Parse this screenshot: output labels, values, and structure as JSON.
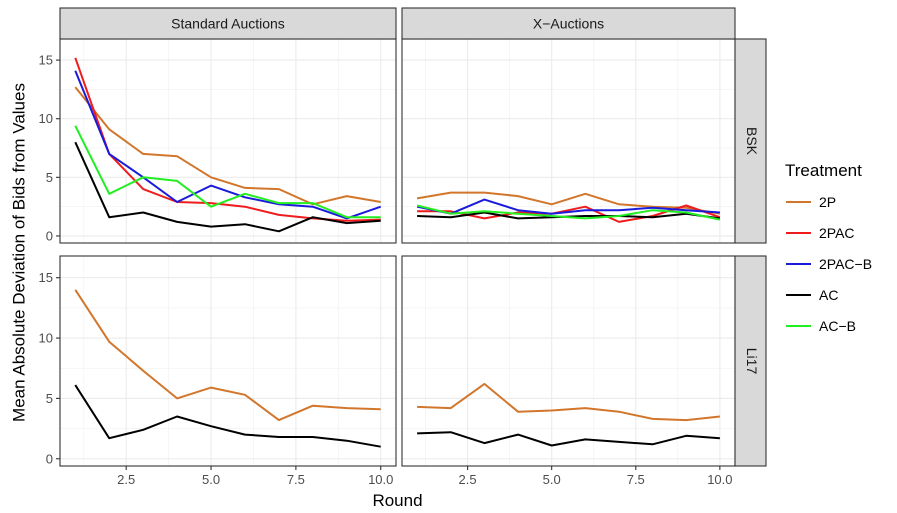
{
  "chart_data": {
    "type": "line",
    "xlabel": "Round",
    "ylabel": "Mean Absolute Deviation of Bids from Values",
    "col_facets": [
      "Standard Auctions",
      "X−Auctions"
    ],
    "row_facets": [
      "BSK",
      "Li17"
    ],
    "x_ticks": [
      2.5,
      5.0,
      7.5,
      10.0
    ],
    "x_tick_labels": [
      "2.5",
      "5.0",
      "7.5",
      "10.0"
    ],
    "y_ticks": [
      0,
      5,
      10,
      15
    ],
    "y_tick_labels": [
      "0",
      "5",
      "10",
      "15"
    ],
    "xlim": [
      0.55,
      10.45
    ],
    "ylim": [
      -0.6,
      16.8
    ],
    "grid": true,
    "legend": {
      "title": "Treatment",
      "position": "right",
      "entries": [
        "2P",
        "2PAC",
        "2PAC−B",
        "AC",
        "AC−B"
      ]
    },
    "series_colors": {
      "2P": "#D2762C",
      "2PAC": "#EE1C1C",
      "2PAC−B": "#1A1ADD",
      "AC": "#000000",
      "AC−B": "#22EE22"
    },
    "x": [
      1,
      2,
      3,
      4,
      5,
      6,
      7,
      8,
      9,
      10
    ],
    "panels": [
      {
        "row": "BSK",
        "col": "Standard Auctions",
        "series": [
          {
            "name": "2P",
            "values": [
              12.7,
              9.1,
              7.0,
              6.8,
              5.0,
              4.1,
              4.0,
              2.7,
              3.4,
              2.9
            ]
          },
          {
            "name": "2PAC",
            "values": [
              15.2,
              7.0,
              4.0,
              2.9,
              2.8,
              2.5,
              1.8,
              1.5,
              1.3,
              1.4
            ]
          },
          {
            "name": "2PAC−B",
            "values": [
              14.1,
              7.0,
              5.0,
              2.9,
              4.3,
              3.3,
              2.7,
              2.5,
              1.5,
              2.5
            ]
          },
          {
            "name": "AC",
            "values": [
              8.0,
              1.6,
              2.0,
              1.2,
              0.8,
              1.0,
              0.4,
              1.6,
              1.1,
              1.3
            ]
          },
          {
            "name": "AC−B",
            "values": [
              9.4,
              3.6,
              5.0,
              4.7,
              2.5,
              3.6,
              2.8,
              2.8,
              1.6,
              1.6
            ]
          }
        ]
      },
      {
        "row": "BSK",
        "col": "X−Auctions",
        "series": [
          {
            "name": "2P",
            "values": [
              3.2,
              3.7,
              3.7,
              3.4,
              2.7,
              3.6,
              2.7,
              2.5,
              2.4,
              1.9
            ]
          },
          {
            "name": "2PAC",
            "values": [
              2.1,
              2.1,
              1.5,
              2.0,
              1.9,
              2.5,
              1.2,
              1.7,
              2.6,
              1.6
            ]
          },
          {
            "name": "2PAC−B",
            "values": [
              2.5,
              1.9,
              3.1,
              2.2,
              1.9,
              2.2,
              2.2,
              2.4,
              2.2,
              2.0
            ]
          },
          {
            "name": "AC",
            "values": [
              1.7,
              1.6,
              2.0,
              1.5,
              1.6,
              1.7,
              1.7,
              1.6,
              1.9,
              1.5
            ]
          },
          {
            "name": "AC−B",
            "values": [
              2.6,
              1.9,
              2.1,
              1.9,
              1.7,
              1.5,
              1.7,
              2.2,
              2.0,
              1.4
            ]
          }
        ]
      },
      {
        "row": "Li17",
        "col": "Standard Auctions",
        "series": [
          {
            "name": "2P",
            "values": [
              14.0,
              9.7,
              7.3,
              5.0,
              5.9,
              5.3,
              3.2,
              4.4,
              4.2,
              4.1
            ]
          },
          {
            "name": "AC",
            "values": [
              6.1,
              1.7,
              2.4,
              3.5,
              2.7,
              2.0,
              1.8,
              1.8,
              1.5,
              1.0
            ]
          }
        ]
      },
      {
        "row": "Li17",
        "col": "X−Auctions",
        "series": [
          {
            "name": "2P",
            "values": [
              4.3,
              4.2,
              6.2,
              3.9,
              4.0,
              4.2,
              3.9,
              3.3,
              3.2,
              3.5
            ]
          },
          {
            "name": "AC",
            "values": [
              2.1,
              2.2,
              1.3,
              2.0,
              1.1,
              1.6,
              1.4,
              1.2,
              1.9,
              1.7
            ]
          }
        ]
      }
    ]
  }
}
